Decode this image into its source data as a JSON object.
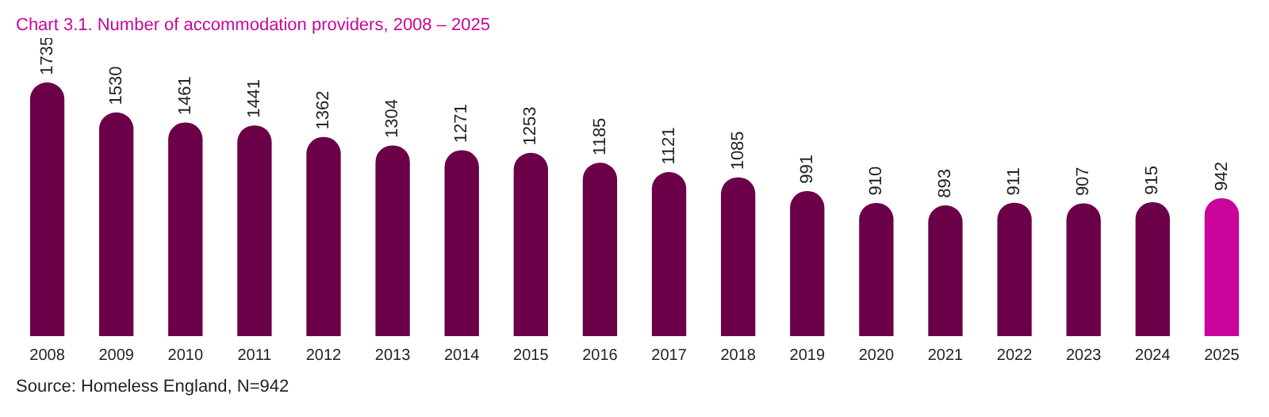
{
  "chart_data": {
    "type": "bar",
    "title": "Chart 3.1. Number of accommodation providers, 2008 – 2025",
    "categories": [
      "2008",
      "2009",
      "2010",
      "2011",
      "2012",
      "2013",
      "2014",
      "2015",
      "2016",
      "2017",
      "2018",
      "2019",
      "2020",
      "2021",
      "2022",
      "2023",
      "2024",
      "2025"
    ],
    "values": [
      1735,
      1530,
      1461,
      1441,
      1362,
      1304,
      1271,
      1253,
      1185,
      1121,
      1085,
      991,
      910,
      893,
      911,
      907,
      915,
      942
    ],
    "colors": [
      "#6b0048",
      "#6b0048",
      "#6b0048",
      "#6b0048",
      "#6b0048",
      "#6b0048",
      "#6b0048",
      "#6b0048",
      "#6b0048",
      "#6b0048",
      "#6b0048",
      "#6b0048",
      "#6b0048",
      "#6b0048",
      "#6b0048",
      "#6b0048",
      "#6b0048",
      "#c8049a"
    ],
    "data_labels": true,
    "grid": false,
    "legend": false,
    "annotations": [
      "Source: Homeless England, N=942"
    ]
  }
}
